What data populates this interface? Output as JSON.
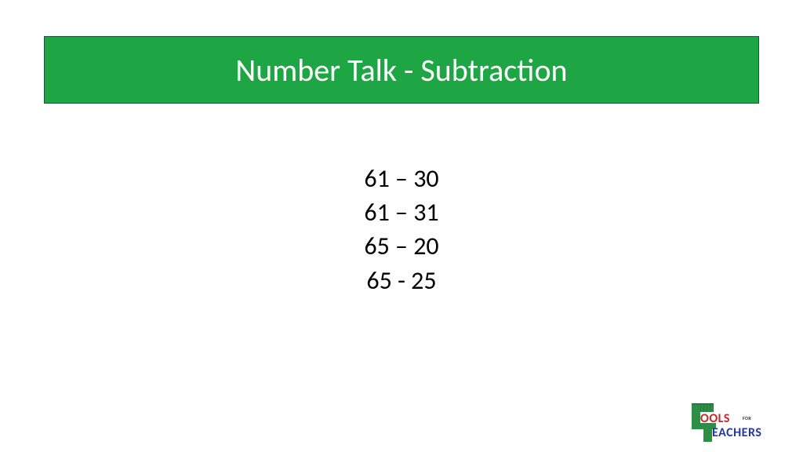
{
  "slide": {
    "title": "Number Talk - Subtraction",
    "title_bg_color": "#1ea544",
    "title_border_color": "#1a5631",
    "title_text_color": "#ffffff",
    "title_fontsize": 40,
    "background_color": "#ffffff"
  },
  "problems": {
    "lines": [
      "61 – 30",
      "61 – 31",
      "65 – 20",
      "65 - 25"
    ],
    "text_color": "#000000",
    "fontsize": 32
  },
  "logo": {
    "line1": "OOLS",
    "line1_color": "#c02a2a",
    "for_text": "FOR",
    "line2": "EACHERS",
    "line2_color": "#2438a0",
    "t_color": "#2d8f47"
  }
}
